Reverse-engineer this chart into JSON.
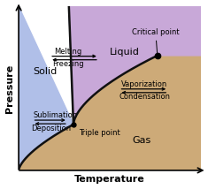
{
  "xlabel": "Temperature",
  "ylabel": "Pressure",
  "solid_color": "#b0bfe8",
  "liquid_color": "#c8a8d8",
  "gas_color": "#cdaa78",
  "curve_color": "#111111",
  "curve_lw": 1.8,
  "triple_point": [
    0.3,
    0.28
  ],
  "critical_point": [
    0.76,
    0.7
  ],
  "fs_region": 8,
  "fs_label": 6.0
}
